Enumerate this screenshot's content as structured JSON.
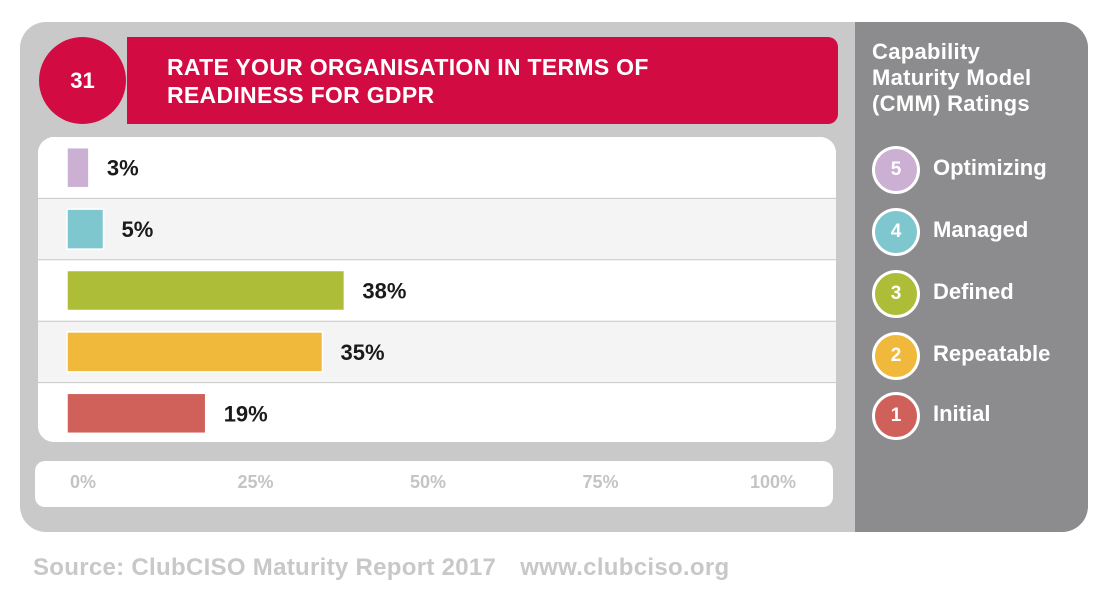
{
  "badge_number": "31",
  "title_lines": [
    "RATE YOUR ORGANISATION IN TERMS OF",
    "READINESS FOR GDPR"
  ],
  "sidebar": {
    "title_lines": [
      "Capability",
      "Maturity Model",
      "(CMM) Ratings"
    ],
    "items": [
      {
        "level": "5",
        "label": "Optimizing",
        "color": "#cbb0d4"
      },
      {
        "level": "4",
        "label": "Managed",
        "color": "#7fc7cf"
      },
      {
        "level": "3",
        "label": "Defined",
        "color": "#aebd38"
      },
      {
        "level": "2",
        "label": "Repeatable",
        "color": "#f1b93b"
      },
      {
        "level": "1",
        "label": "Initial",
        "color": "#d0605a"
      }
    ]
  },
  "chart_data": {
    "type": "bar",
    "orientation": "horizontal",
    "categories": [
      "Optimizing",
      "Managed",
      "Defined",
      "Repeatable",
      "Initial"
    ],
    "values": [
      3,
      5,
      38,
      35,
      19
    ],
    "value_labels": [
      "3%",
      "5%",
      "38%",
      "35%",
      "19%"
    ],
    "colors": [
      "#cbb0d4",
      "#7fc7cf",
      "#aebd38",
      "#f1b93b",
      "#d0605a"
    ],
    "xlim": [
      0,
      100
    ],
    "xticks": [
      "0%",
      "25%",
      "50%",
      "75%",
      "100%"
    ],
    "tick_values": [
      0,
      25,
      50,
      75,
      100
    ],
    "grid": "row separators"
  },
  "source": {
    "text": "Source: ClubCISO Maturity Report 2017",
    "url": "www.clubciso.org"
  }
}
